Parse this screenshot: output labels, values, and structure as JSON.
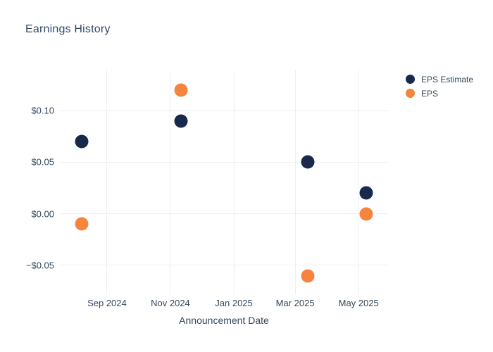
{
  "chart_data": {
    "type": "scatter",
    "title": "Earnings History",
    "xlabel": "Announcement Date",
    "ylabel": "",
    "grid": true,
    "legend_position": "right-outside-top",
    "background": "#ffffff",
    "grid_color": "#eaeef5",
    "text_color": "#33475b",
    "title_color": "#2f4a66",
    "xlim": [
      "2024-07-17",
      "2025-05-30"
    ],
    "ylim": [
      -0.078,
      0.139
    ],
    "x_ticks": [
      {
        "date": "2024-09-01",
        "label": "Sep 2024"
      },
      {
        "date": "2024-11-01",
        "label": "Nov 2024"
      },
      {
        "date": "2025-01-01",
        "label": "Jan 2025"
      },
      {
        "date": "2025-03-01",
        "label": "Mar 2025"
      },
      {
        "date": "2025-05-01",
        "label": "May 2025"
      }
    ],
    "y_ticks": [
      {
        "value": 0.1,
        "label": "$0.10"
      },
      {
        "value": 0.05,
        "label": "$0.05"
      },
      {
        "value": 0.0,
        "label": "$0.00"
      },
      {
        "value": -0.05,
        "label": "−$0.05"
      }
    ],
    "x": [
      "2024-08-08",
      "2024-11-11",
      "2025-03-13",
      "2025-05-08"
    ],
    "series": [
      {
        "name": "EPS Estimate",
        "color": "#18294b",
        "values": [
          0.07,
          0.09,
          0.05,
          0.02
        ]
      },
      {
        "name": "EPS",
        "color": "#f5853e",
        "values": [
          -0.01,
          0.12,
          -0.06,
          0.0
        ]
      }
    ],
    "marker_diameter_px": 19
  }
}
